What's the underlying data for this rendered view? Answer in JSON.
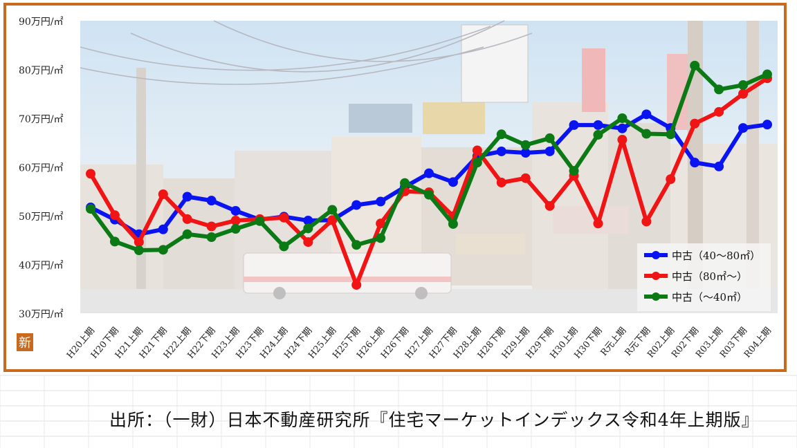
{
  "chart_data": {
    "type": "line",
    "y_unit": "万円/㎡",
    "ylim": [
      30,
      90
    ],
    "yticks": [
      30,
      40,
      50,
      60,
      70,
      80,
      90
    ],
    "ytick_labels": [
      "30万円/㎡",
      "40万円/㎡",
      "50万円/㎡",
      "60万円/㎡",
      "70万円/㎡",
      "80万円/㎡",
      "90万円/㎡"
    ],
    "categories": [
      "H20上期",
      "H20下期",
      "H21上期",
      "H21下期",
      "H22上期",
      "H22下期",
      "H23上期",
      "H23下期",
      "H24上期",
      "H24下期",
      "H25上期",
      "H25下期",
      "H26上期",
      "H26下期",
      "H27上期",
      "H27下期",
      "H28上期",
      "H28下期",
      "H29上期",
      "H29下期",
      "H30上期",
      "H30下期",
      "R元上期",
      "R元下期",
      "R02上期",
      "R02下期",
      "R03上期",
      "R03下期",
      "R04上期"
    ],
    "series": [
      {
        "name": "中古（40～80㎡）",
        "color": "#0a14f0",
        "values": [
          51.7,
          49.2,
          46.2,
          47.2,
          53.9,
          53.1,
          51.0,
          49.2,
          49.8,
          49.0,
          49.1,
          52.2,
          52.9,
          55.9,
          58.7,
          56.9,
          62.2,
          63.2,
          62.9,
          63.2,
          68.6,
          68.6,
          67.9,
          70.8,
          68.0,
          60.9,
          60.1,
          68.0,
          68.7
        ]
      },
      {
        "name": "中古（80㎡～）",
        "color": "#f01414",
        "values": [
          58.6,
          50.1,
          44.6,
          54.4,
          49.3,
          47.8,
          49.0,
          49.3,
          49.6,
          44.6,
          49.1,
          35.8,
          48.4,
          55.0,
          54.8,
          49.9,
          63.4,
          56.8,
          57.7,
          52.0,
          58.2,
          48.4,
          65.6,
          48.8,
          57.5,
          68.9,
          71.3,
          75.0,
          78.2
        ]
      },
      {
        "name": "中古（～40㎡）",
        "color": "#0c7a14",
        "values": [
          51.4,
          44.7,
          42.9,
          43.0,
          46.2,
          45.6,
          47.3,
          48.9,
          43.7,
          47.4,
          51.2,
          44.0,
          45.4,
          56.7,
          54.3,
          48.3,
          60.9,
          66.7,
          64.5,
          65.9,
          59.2,
          66.6,
          70.0,
          66.8,
          66.7,
          80.8,
          75.9,
          76.8,
          79.0
        ]
      }
    ],
    "legend_position": "bottom-right",
    "grid": false,
    "background": "photograph of a Japanese street scene with a bus and utility poles"
  },
  "badge_text": "新",
  "source_note": "出所：（一財）日本不動産研究所『住宅マーケットインデックス令和4年上期版』"
}
